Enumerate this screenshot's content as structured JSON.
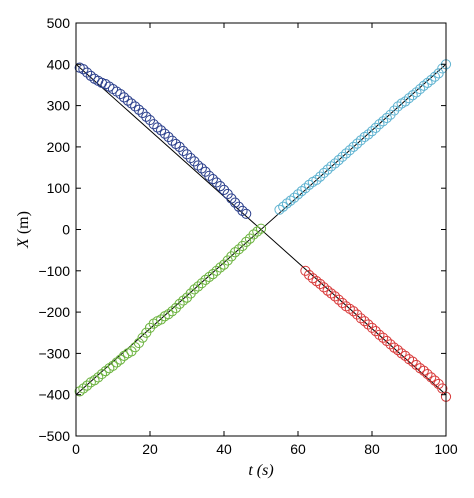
{
  "chart_data": {
    "type": "scatter",
    "title": "",
    "xlabel": "t (s)",
    "xlabel_var": "t",
    "xlabel_unit": "(s)",
    "ylabel": "X (m)",
    "ylabel_var": "X",
    "ylabel_unit": "(m)",
    "xlim": [
      0,
      100
    ],
    "ylim": [
      -500,
      500
    ],
    "xticks": [
      0,
      20,
      40,
      60,
      80,
      100
    ],
    "yticks": [
      -500,
      -400,
      -300,
      -200,
      -100,
      0,
      100,
      200,
      300,
      400,
      500
    ],
    "xtick_labels": [
      "0",
      "20",
      "40",
      "60",
      "80",
      "100"
    ],
    "ytick_labels": [
      "−500",
      "−400",
      "−300",
      "−200",
      "−100",
      "0",
      "100",
      "200",
      "300",
      "400",
      "500"
    ],
    "grid": false,
    "marker": "open-circle",
    "series": [
      {
        "color": "#2b3f8c",
        "x": [
          1,
          2,
          3,
          4,
          5,
          6,
          7,
          8,
          9,
          10,
          11,
          12,
          13,
          14,
          15,
          16,
          17,
          18,
          19,
          20,
          21,
          22,
          23,
          24,
          25,
          26,
          27,
          28,
          29,
          30,
          31,
          32,
          33,
          34,
          35,
          36,
          37,
          38,
          39,
          40,
          41,
          42,
          43,
          44,
          45,
          46
        ],
        "y": [
          392,
          388,
          380,
          372,
          365,
          360,
          355,
          352,
          346,
          340,
          334,
          328,
          320,
          312,
          305,
          298,
          290,
          282,
          273,
          265,
          255,
          247,
          240,
          232,
          224,
          215,
          207,
          200,
          190,
          182,
          173,
          165,
          155,
          148,
          140,
          130,
          122,
          114,
          105,
          96,
          86,
          75,
          65,
          55,
          45,
          38
        ]
      },
      {
        "color": "#5fb3d1",
        "x": [
          55,
          56,
          57,
          58,
          59,
          60,
          61,
          62,
          63,
          64,
          65,
          66,
          67,
          68,
          69,
          70,
          71,
          72,
          73,
          74,
          75,
          76,
          77,
          78,
          79,
          80,
          81,
          82,
          83,
          84,
          85,
          86,
          87,
          88,
          89,
          90,
          91,
          92,
          93,
          94,
          95,
          96,
          97,
          98,
          99,
          100
        ],
        "y": [
          48,
          55,
          63,
          70,
          77,
          85,
          93,
          100,
          108,
          115,
          120,
          128,
          137,
          145,
          153,
          160,
          168,
          176,
          184,
          192,
          200,
          208,
          216,
          224,
          230,
          238,
          246,
          255,
          262,
          270,
          278,
          288,
          298,
          305,
          310,
          318,
          325,
          332,
          340,
          348,
          355,
          362,
          370,
          378,
          390,
          400
        ]
      },
      {
        "color": "#6cb33f",
        "x": [
          1,
          2,
          3,
          4,
          5,
          6,
          7,
          8,
          9,
          10,
          11,
          12,
          13,
          14,
          15,
          16,
          17,
          18,
          19,
          20,
          21,
          22,
          23,
          24,
          25,
          26,
          27,
          28,
          29,
          30,
          31,
          32,
          33,
          34,
          35,
          36,
          37,
          38,
          39,
          40,
          41,
          42,
          43,
          44,
          45,
          46,
          47,
          48,
          49,
          50
        ],
        "y": [
          -392,
          -385,
          -378,
          -370,
          -365,
          -358,
          -350,
          -343,
          -336,
          -330,
          -322,
          -315,
          -306,
          -300,
          -295,
          -285,
          -275,
          -262,
          -250,
          -238,
          -228,
          -222,
          -218,
          -210,
          -205,
          -198,
          -190,
          -180,
          -172,
          -165,
          -155,
          -145,
          -138,
          -130,
          -122,
          -115,
          -108,
          -100,
          -92,
          -85,
          -75,
          -65,
          -55,
          -48,
          -40,
          -30,
          -22,
          -12,
          -5,
          2
        ]
      },
      {
        "color": "#d83a3a",
        "x": [
          62,
          63,
          64,
          65,
          66,
          67,
          68,
          69,
          70,
          71,
          72,
          73,
          74,
          75,
          76,
          77,
          78,
          79,
          80,
          81,
          82,
          83,
          84,
          85,
          86,
          87,
          88,
          89,
          90,
          91,
          92,
          93,
          94,
          95,
          96,
          97,
          98,
          99,
          100
        ],
        "y": [
          -100,
          -110,
          -118,
          -125,
          -132,
          -140,
          -148,
          -155,
          -162,
          -170,
          -178,
          -186,
          -192,
          -198,
          -206,
          -215,
          -222,
          -230,
          -238,
          -246,
          -255,
          -262,
          -270,
          -278,
          -286,
          -292,
          -300,
          -306,
          -314,
          -320,
          -328,
          -336,
          -342,
          -350,
          -358,
          -366,
          -374,
          -385,
          -405
        ]
      }
    ],
    "fit_lines": [
      {
        "color": "#000000",
        "x": [
          0,
          100
        ],
        "y": [
          400,
          -400
        ]
      },
      {
        "color": "#000000",
        "x": [
          0,
          100
        ],
        "y": [
          -400,
          400
        ]
      }
    ]
  }
}
